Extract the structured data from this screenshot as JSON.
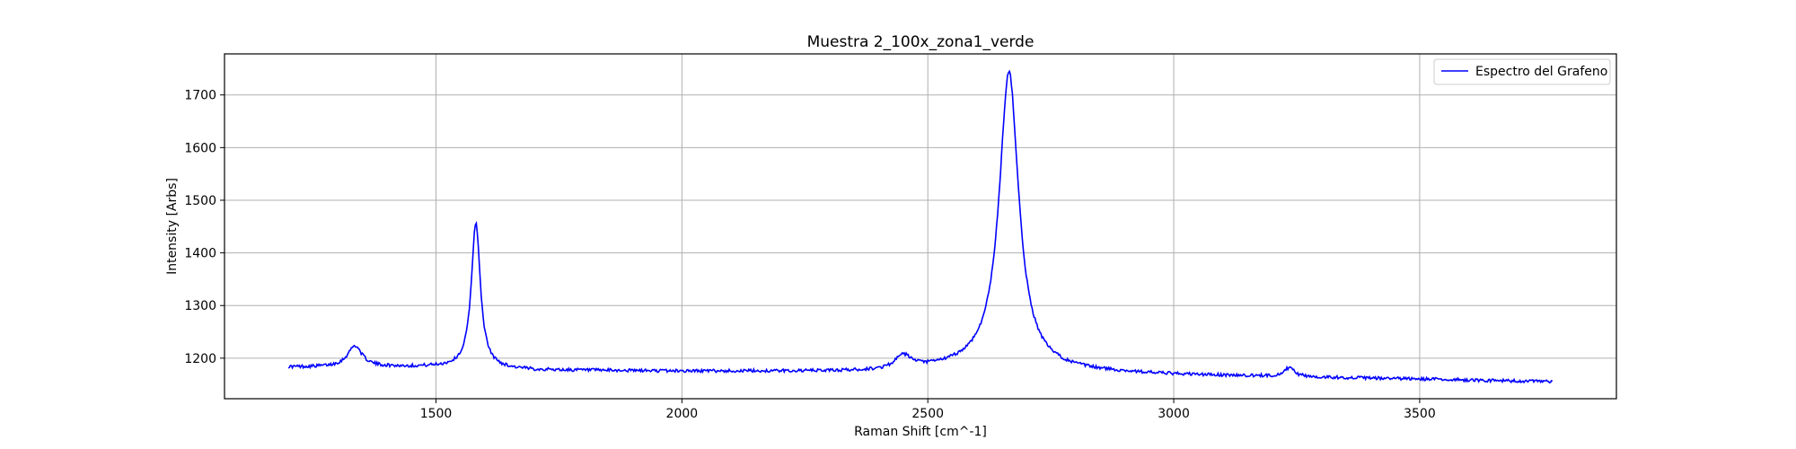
{
  "chart_data": {
    "type": "line",
    "title": "Muestra 2_100x_zona1_verde",
    "xlabel": "Raman Shift [cm^-1]",
    "ylabel": "Intensity [Arbs]",
    "xlim": [
      1070,
      3900
    ],
    "ylim": [
      1123,
      1778
    ],
    "xticks": [
      1500,
      2000,
      2500,
      3000,
      3500
    ],
    "yticks": [
      1200,
      1300,
      1400,
      1500,
      1600,
      1700
    ],
    "grid": true,
    "legend_position": "top-right",
    "series": [
      {
        "name": "Espectro del Grafeno",
        "color": "#0000ff",
        "baseline": {
          "x": [
            1200,
            1500,
            1700,
            2000,
            2400,
            2600,
            2800,
            3000,
            3500,
            3770
          ],
          "y": [
            1183,
            1183,
            1177,
            1175,
            1174,
            1183,
            1174,
            1168,
            1160,
            1155
          ]
        },
        "peaks": [
          {
            "center": 1335,
            "height": 40,
            "width": 18
          },
          {
            "center": 1581,
            "height": 277,
            "width": 11
          },
          {
            "center": 2450,
            "height": 25,
            "width": 20
          },
          {
            "center": 2665,
            "height": 564,
            "width": 24
          },
          {
            "center": 3235,
            "height": 17,
            "width": 12
          }
        ],
        "x_range": [
          1200,
          3770
        ],
        "noise": 3
      }
    ]
  }
}
